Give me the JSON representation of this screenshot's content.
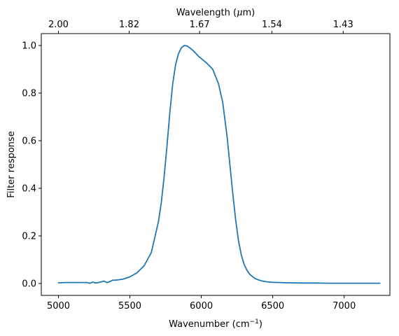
{
  "chart_data": {
    "type": "line",
    "xlabel": "Wavenumber (cm",
    "xlabel_sup": "−1",
    "xlabel_end": ")",
    "ylabel": "Filter response",
    "top_xlabel": "Wavelength (",
    "top_xlabel_mu": "μ",
    "top_xlabel_end": "m)",
    "xlim": [
      4880,
      7320
    ],
    "ylim": [
      -0.05,
      1.05
    ],
    "x_ticks": [
      5000,
      5500,
      6000,
      6500,
      7000
    ],
    "y_ticks": [
      0.0,
      0.2,
      0.4,
      0.6,
      0.8,
      1.0
    ],
    "y_tick_labels": [
      "0.0",
      "0.2",
      "0.4",
      "0.6",
      "0.8",
      "1.0"
    ],
    "top_ticks": [
      {
        "label": "2.00",
        "wavenumber": 5000
      },
      {
        "label": "1.82",
        "wavenumber": 5495
      },
      {
        "label": "1.67",
        "wavenumber": 5988
      },
      {
        "label": "1.54",
        "wavenumber": 6494
      },
      {
        "label": "1.43",
        "wavenumber": 6993
      }
    ],
    "grid": false,
    "series": [
      {
        "color": "#1f77b4",
        "x": [
          5000,
          5050,
          5100,
          5150,
          5200,
          5220,
          5240,
          5260,
          5280,
          5300,
          5320,
          5340,
          5360,
          5380,
          5400,
          5450,
          5500,
          5550,
          5600,
          5650,
          5700,
          5720,
          5740,
          5760,
          5780,
          5800,
          5820,
          5840,
          5860,
          5880,
          5900,
          5920,
          5940,
          5960,
          5980,
          6000,
          6040,
          6080,
          6120,
          6150,
          6180,
          6200,
          6220,
          6240,
          6260,
          6280,
          6300,
          6320,
          6340,
          6360,
          6380,
          6400,
          6430,
          6460,
          6500,
          6550,
          6600,
          6700,
          6800,
          6900,
          7000,
          7100,
          7200,
          7250
        ],
        "y": [
          0.003,
          0.004,
          0.004,
          0.004,
          0.004,
          0.001,
          0.006,
          0.002,
          0.004,
          0.007,
          0.01,
          0.004,
          0.008,
          0.014,
          0.014,
          0.018,
          0.028,
          0.045,
          0.075,
          0.13,
          0.26,
          0.34,
          0.45,
          0.58,
          0.72,
          0.84,
          0.92,
          0.965,
          0.99,
          1.0,
          0.998,
          0.99,
          0.98,
          0.968,
          0.955,
          0.945,
          0.925,
          0.9,
          0.84,
          0.76,
          0.62,
          0.5,
          0.38,
          0.27,
          0.18,
          0.12,
          0.08,
          0.055,
          0.038,
          0.028,
          0.02,
          0.015,
          0.01,
          0.007,
          0.005,
          0.004,
          0.003,
          0.002,
          0.002,
          0.001,
          0.001,
          0.001,
          0.001,
          0.001
        ]
      }
    ]
  }
}
